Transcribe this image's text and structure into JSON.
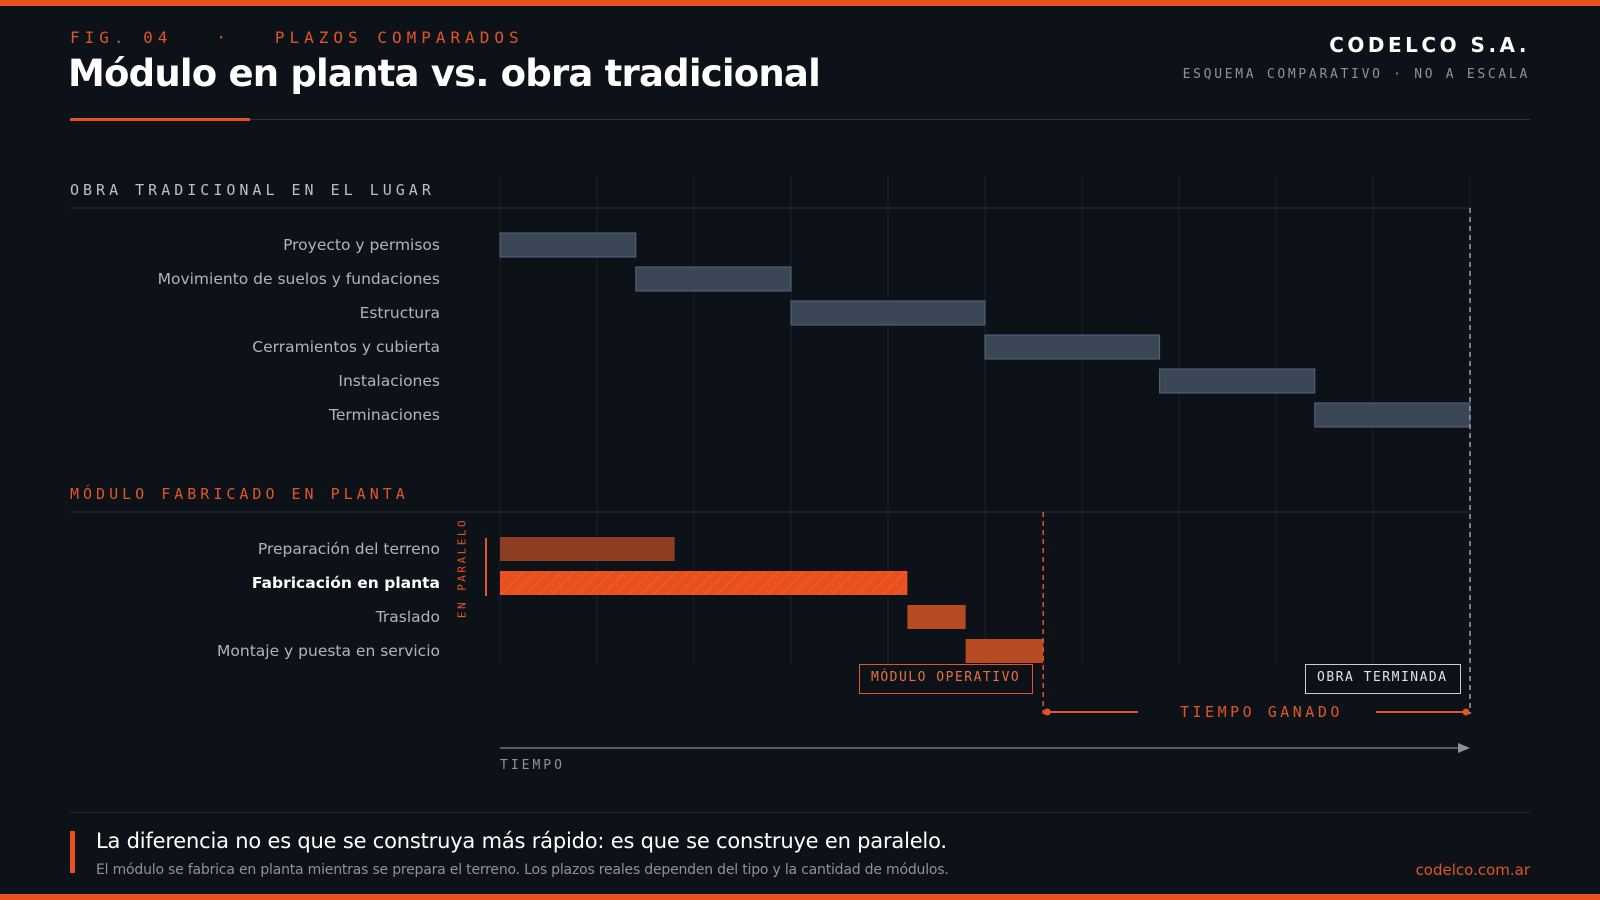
{
  "header": {
    "fig": "FIG. 04",
    "separator": "·",
    "eyebrow": "PLAZOS COMPARADOS",
    "title": "Módulo en planta vs. obra tradicional",
    "brand": "CODELCO S.A.",
    "subtitle": "ESQUEMA COMPARATIVO · NO A ESCALA"
  },
  "chart_data": {
    "type": "gantt",
    "x_axis_label": "TIEMPO",
    "time_units": "relative columns (not to scale)",
    "xlim": [
      0,
      10
    ],
    "grid": true,
    "groups": [
      {
        "name": "OBRA TRADICIONAL EN EL LUGAR",
        "color": "#3b4757",
        "tasks": [
          {
            "label": "Proyecto y permisos",
            "start": 0,
            "end": 1.4
          },
          {
            "label": "Movimiento de suelos y fundaciones",
            "start": 1.4,
            "end": 3.0
          },
          {
            "label": "Estructura",
            "start": 3.0,
            "end": 5.0
          },
          {
            "label": "Cerramientos y cubierta",
            "start": 5.0,
            "end": 6.8
          },
          {
            "label": "Instalaciones",
            "start": 6.8,
            "end": 8.4
          },
          {
            "label": "Terminaciones",
            "start": 8.4,
            "end": 10.0
          }
        ]
      },
      {
        "name": "MÓDULO FABRICADO EN PLANTA",
        "color": "#e8501e",
        "parallel_label": "EN PARALELO",
        "tasks": [
          {
            "label": "Preparación del terreno",
            "start": 0,
            "end": 1.8,
            "color": "#8e3e22"
          },
          {
            "label": "Fabricación en planta",
            "start": 0,
            "end": 4.2,
            "color": "#e8501e",
            "highlight": true
          },
          {
            "label": "Traslado",
            "start": 4.2,
            "end": 4.8,
            "color": "#b84a22"
          },
          {
            "label": "Montaje y puesta en servicio",
            "start": 4.8,
            "end": 5.6,
            "color": "#b84a22"
          }
        ]
      }
    ],
    "markers": [
      {
        "label": "MÓDULO OPERATIVO",
        "at": 5.6
      },
      {
        "label": "OBRA TERMINADA",
        "at": 10.0
      }
    ],
    "span": {
      "label": "TIEMPO GANADO",
      "from": 5.6,
      "to": 10.0
    }
  },
  "footer": {
    "headline": "La diferencia no es que se construya más rápido: es que se construye en paralelo.",
    "note": "El módulo se fabrica en planta mientras se prepara el terreno. Los plazos reales dependen del tipo y la cantidad de módulos.",
    "url": "codelco.com.ar"
  },
  "colors": {
    "accent": "#e8501e",
    "background": "#0d1118",
    "traditional_bar": "#3b4757"
  }
}
